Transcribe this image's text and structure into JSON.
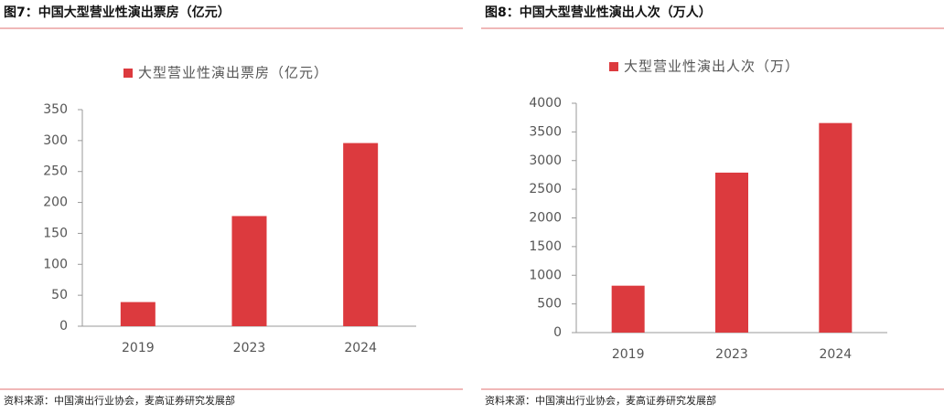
{
  "chart_data": [
    {
      "type": "bar",
      "title": "图7：中国大型营业性演出票房（亿元）",
      "categories": [
        "2019",
        "2023",
        "2024"
      ],
      "series": [
        {
          "name": "大型营业性演出票房（亿元）",
          "color": "#dc3a3e",
          "values": [
            39,
            178,
            296
          ]
        }
      ],
      "ylim": [
        0,
        350
      ],
      "yticks": [
        0,
        50,
        100,
        150,
        200,
        250,
        300,
        350
      ],
      "source": "资料来源：中国演出行业协会，麦高证券研究发展部"
    },
    {
      "type": "bar",
      "title": "图8：中国大型营业性演出人次（万人）",
      "categories": [
        "2019",
        "2023",
        "2024"
      ],
      "series": [
        {
          "name": "大型营业性演出人次（万）",
          "color": "#dc3a3e",
          "values": [
            818,
            2790,
            3655
          ]
        }
      ],
      "ylim": [
        0,
        4000
      ],
      "yticks": [
        0,
        500,
        1000,
        1500,
        2000,
        2500,
        3000,
        3500,
        4000
      ],
      "source": "资料来源：中国演出行业协会，麦高证券研究发展部"
    }
  ]
}
